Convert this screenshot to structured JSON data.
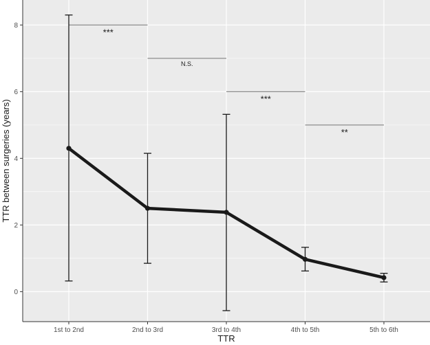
{
  "chart_data": {
    "type": "line",
    "title": "",
    "xlabel": "TTR",
    "ylabel": "TTR between surgeries (years)",
    "categories": [
      "1st to 2nd",
      "2nd to 3rd",
      "3rd to 4th",
      "4th to 5th",
      "5th to 6th"
    ],
    "series": [
      {
        "values": [
          4.3,
          2.5,
          2.38,
          0.97,
          0.42
        ],
        "lower": [
          0.32,
          0.85,
          -0.57,
          0.62,
          0.29
        ],
        "upper": [
          8.3,
          4.15,
          5.32,
          1.33,
          0.55
        ]
      }
    ],
    "ylim": [
      -0.9,
      8.75
    ],
    "yticks": [
      0,
      2,
      4,
      6,
      8
    ],
    "grid": true,
    "significance": [
      {
        "from": 0,
        "to": 1,
        "y": 8.0,
        "label": "***"
      },
      {
        "from": 1,
        "to": 2,
        "y": 7.0,
        "label": "N.S."
      },
      {
        "from": 2,
        "to": 3,
        "y": 6.0,
        "label": "***"
      },
      {
        "from": 3,
        "to": 4,
        "y": 5.0,
        "label": "**"
      }
    ],
    "colors": {
      "panel": "#ebebeb",
      "grid": "#ffffff",
      "line": "#1a1a1a",
      "bracket": "#8c8c8c"
    }
  }
}
